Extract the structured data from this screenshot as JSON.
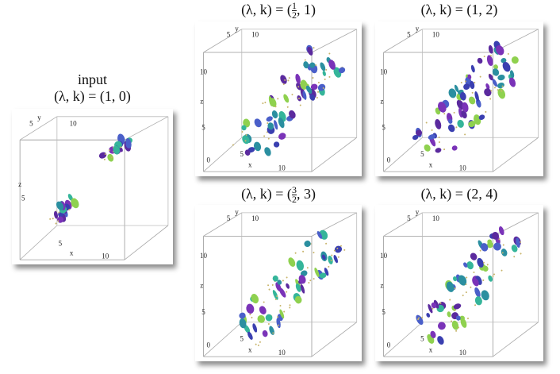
{
  "panels": [
    {
      "label": "input",
      "caption": {
        "prefix": "(λ, k) = (1, 0)"
      },
      "ticks": [
        "5",
        "y",
        "10",
        "z",
        "5",
        "5",
        "x",
        "10"
      ]
    },
    {
      "caption": {
        "prefix": "(λ, k) = (",
        "numerator": "1",
        "denominator": "2",
        "suffix": ", 1)"
      },
      "ticks": [
        "5",
        "y",
        "10",
        "10",
        "z",
        "5",
        "0",
        "5",
        "x",
        "10"
      ]
    },
    {
      "caption": {
        "prefix": "(λ, k) = (1, 2)"
      },
      "ticks": [
        "5",
        "y",
        "10",
        "10",
        "z",
        "5",
        "0",
        "5",
        "x",
        "10"
      ]
    },
    {
      "caption": {
        "prefix": "(λ, k) = (",
        "numerator": "3",
        "denominator": "2",
        "suffix": ", 3)"
      },
      "ticks": [
        "5",
        "y",
        "10",
        "10",
        "z",
        "5",
        "0",
        "5",
        "x",
        "10"
      ]
    },
    {
      "caption": {
        "prefix": "(λ, k) = (2, 4)"
      },
      "ticks": [
        "5",
        "y",
        "10",
        "10",
        "z",
        "5",
        "0",
        "5",
        "x",
        "10"
      ]
    }
  ]
}
